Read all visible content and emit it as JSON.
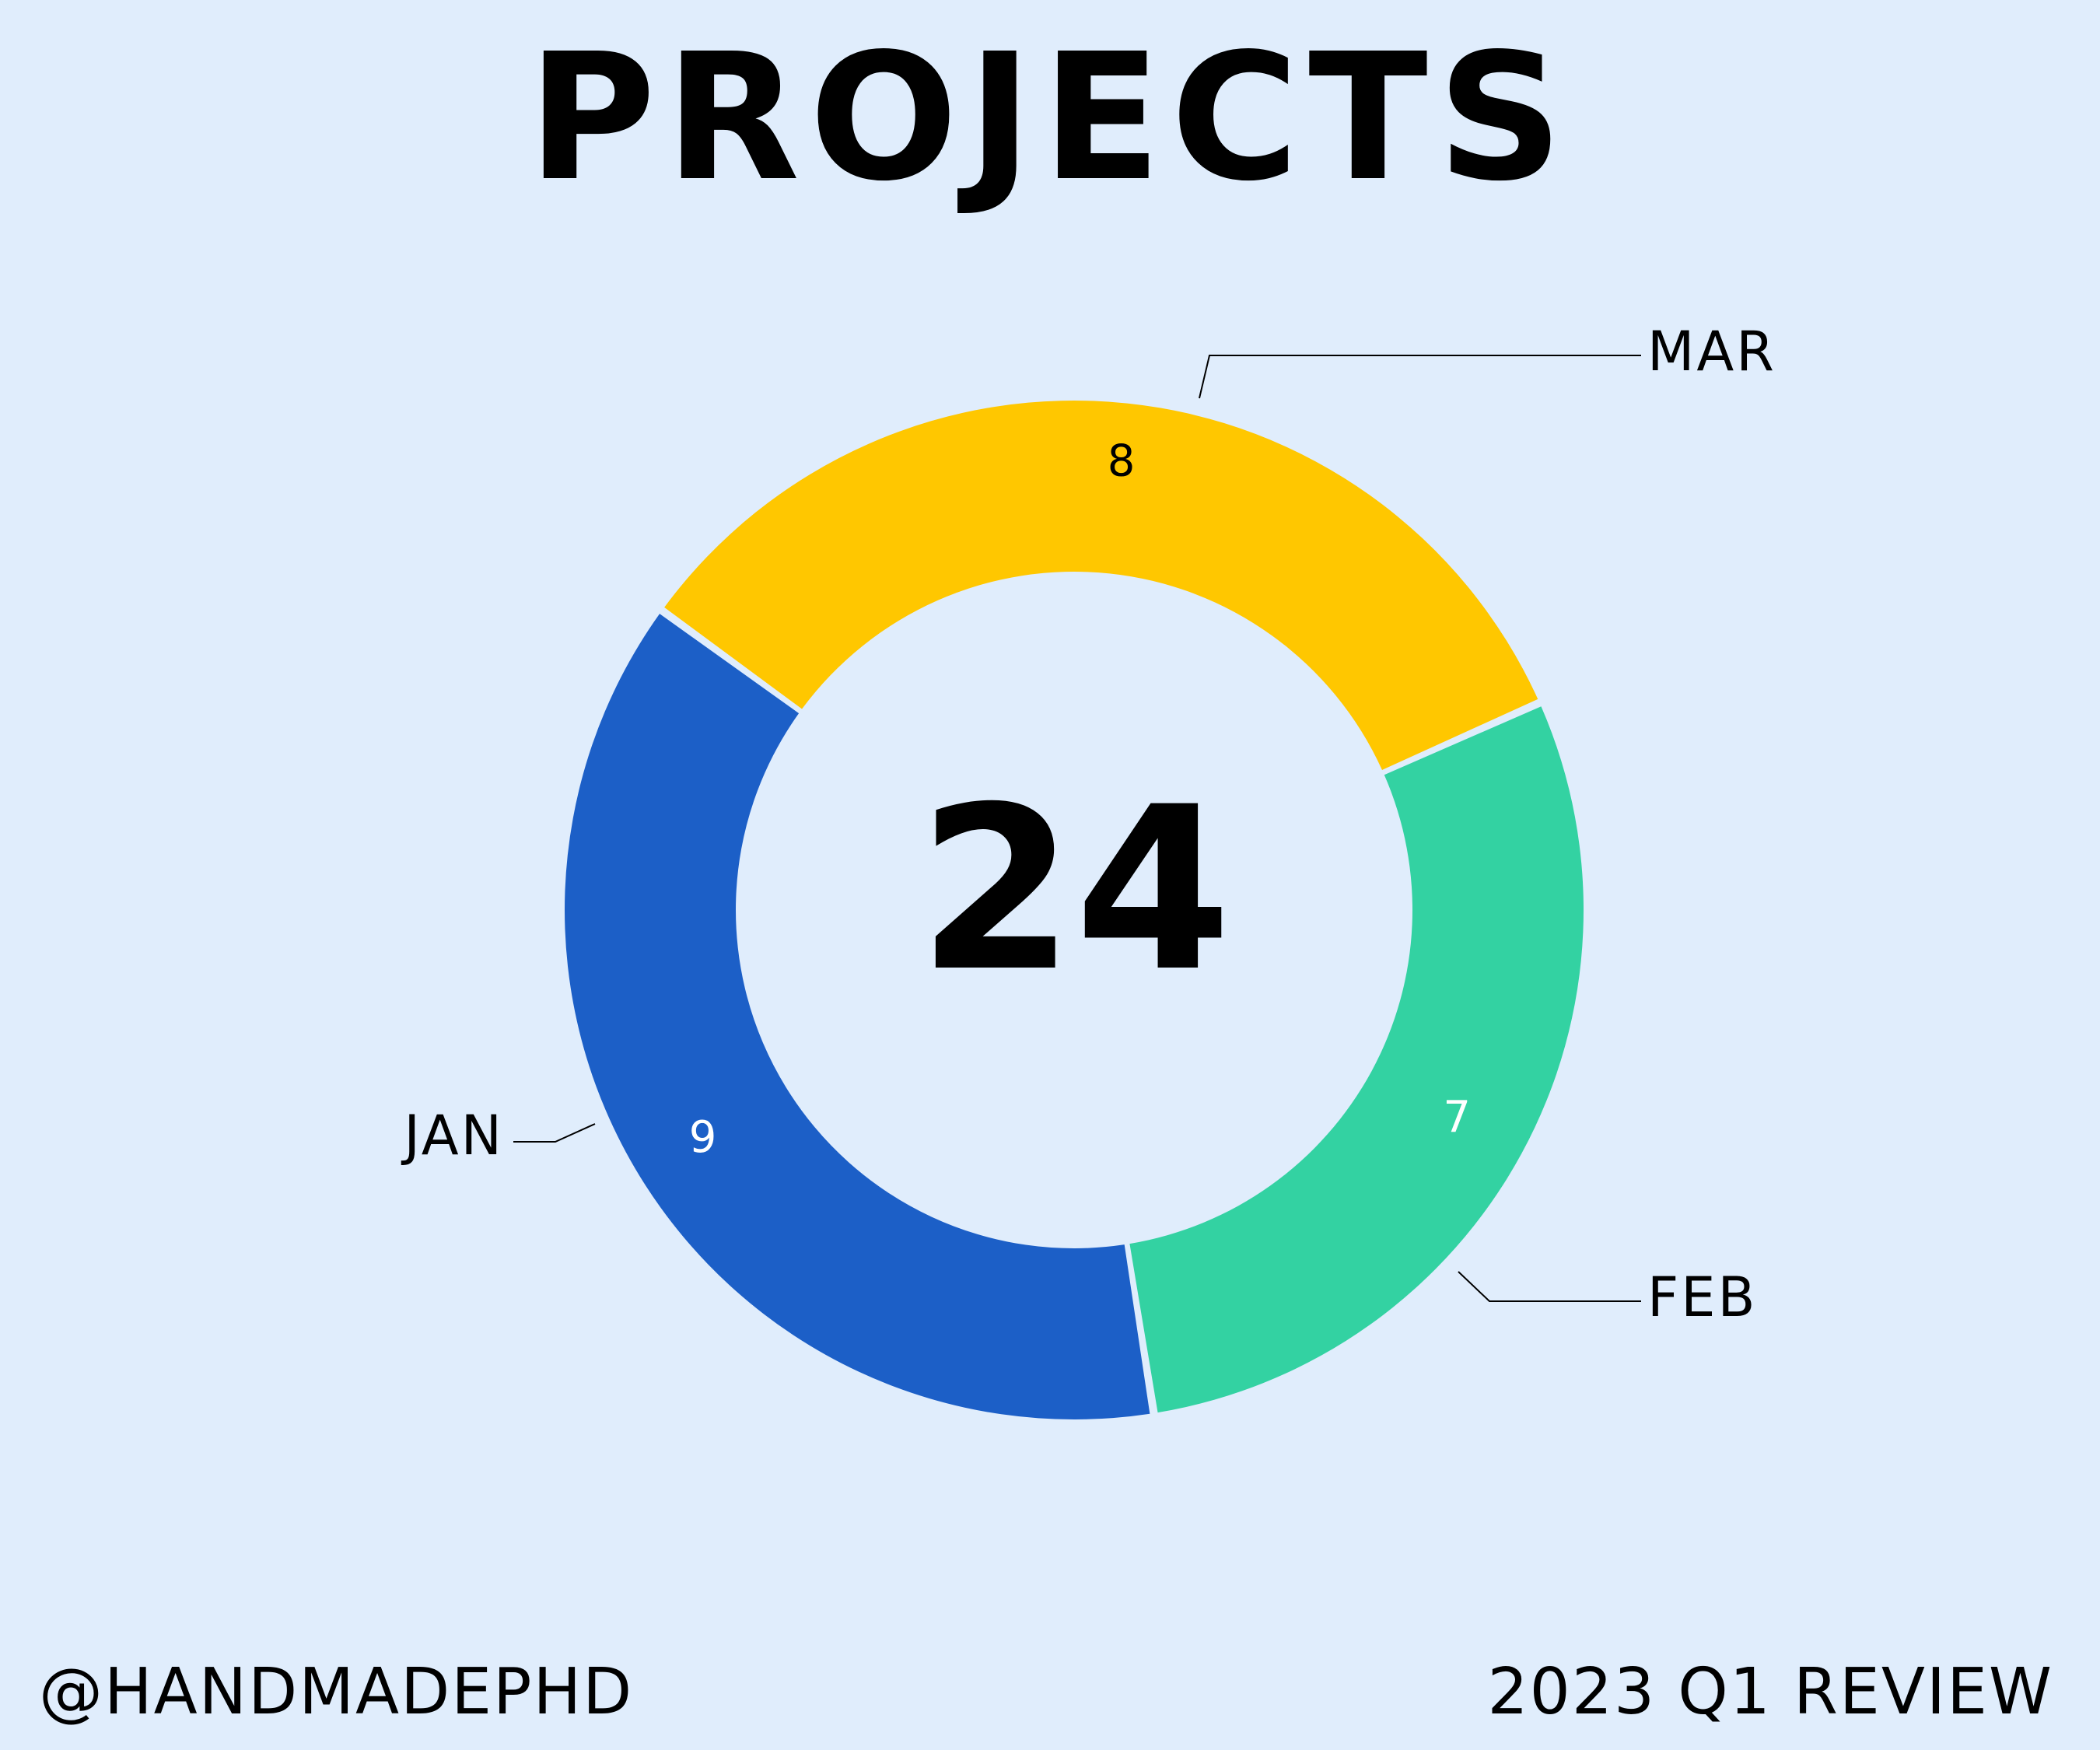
{
  "title": "PROJECTS",
  "center_total": "24",
  "footer": {
    "handle": "@HANDMADEPHD",
    "period": "2023 Q1 REVIEW"
  },
  "colors": {
    "background": "#E0EDFC",
    "jan": "#FFC700",
    "feb": "#33D2A2",
    "mar": "#1C5FC7"
  },
  "chart_data": {
    "type": "pie",
    "variant": "donut",
    "categories": [
      "JAN",
      "FEB",
      "MAR"
    ],
    "values": [
      8,
      7,
      9
    ],
    "total": 24,
    "slices": [
      {
        "label": "JAN",
        "value": 8,
        "color": "#FFC700",
        "value_label_color": "#000000"
      },
      {
        "label": "FEB",
        "value": 7,
        "color": "#33D2A2",
        "value_label_color": "#FFFFFF"
      },
      {
        "label": "MAR",
        "value": 9,
        "color": "#1C5FC7",
        "value_label_color": "#FFFFFF"
      }
    ]
  }
}
